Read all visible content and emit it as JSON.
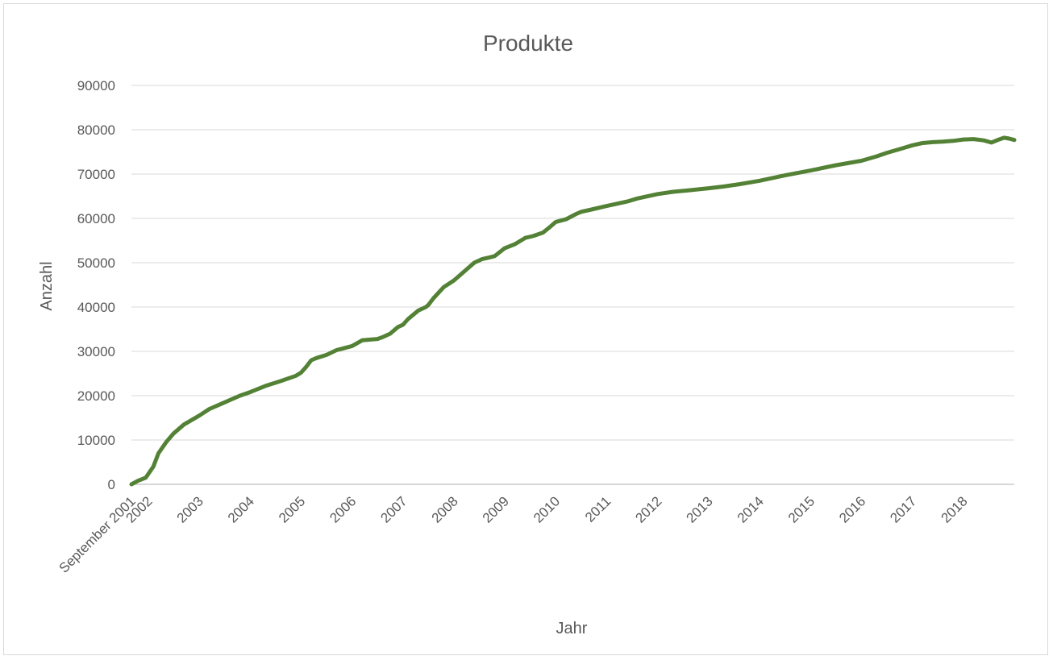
{
  "chart_data": {
    "type": "line",
    "title": "Produkte",
    "xlabel": "Jahr",
    "ylabel": "Anzahl",
    "ylim": [
      0,
      90000
    ],
    "y_ticks": [
      0,
      10000,
      20000,
      30000,
      40000,
      50000,
      60000,
      70000,
      80000,
      90000
    ],
    "grid": true,
    "legend": "none",
    "x_tick_labels": [
      {
        "label": "September 2001",
        "x": 2001.67
      },
      {
        "label": "2002",
        "x": 2002.0
      },
      {
        "label": "2003",
        "x": 2003.0
      },
      {
        "label": "2004",
        "x": 2004.0
      },
      {
        "label": "2005",
        "x": 2005.0
      },
      {
        "label": "2006",
        "x": 2006.0
      },
      {
        "label": "2007",
        "x": 2007.0
      },
      {
        "label": "2008",
        "x": 2008.0
      },
      {
        "label": "2009",
        "x": 2009.0
      },
      {
        "label": "2010",
        "x": 2010.0
      },
      {
        "label": "2011",
        "x": 2011.0
      },
      {
        "label": "2012",
        "x": 2012.0
      },
      {
        "label": "2013",
        "x": 2013.0
      },
      {
        "label": "2014",
        "x": 2014.0
      },
      {
        "label": "2015",
        "x": 2015.0
      },
      {
        "label": "2016",
        "x": 2016.0
      },
      {
        "label": "2017",
        "x": 2017.0
      },
      {
        "label": "2018",
        "x": 2018.0
      }
    ],
    "xlim": [
      2001.67,
      2019.0
    ],
    "series": [
      {
        "color": "#538135",
        "x": [
          2001.67,
          2001.8,
          2001.95,
          2002.1,
          2002.2,
          2002.35,
          2002.5,
          2002.7,
          2003.0,
          2003.2,
          2003.5,
          2003.8,
          2004.0,
          2004.3,
          2004.6,
          2004.9,
          2005.0,
          2005.1,
          2005.2,
          2005.3,
          2005.5,
          2005.7,
          2006.0,
          2006.2,
          2006.5,
          2006.6,
          2006.75,
          2006.9,
          2007.0,
          2007.1,
          2007.3,
          2007.45,
          2007.5,
          2007.6,
          2007.8,
          2008.0,
          2008.2,
          2008.4,
          2008.55,
          2008.7,
          2008.8,
          2009.0,
          2009.2,
          2009.4,
          2009.55,
          2009.75,
          2009.9,
          2010.0,
          2010.2,
          2010.4,
          2010.5,
          2010.7,
          2011.0,
          2011.2,
          2011.4,
          2011.6,
          2012.0,
          2012.3,
          2012.6,
          2013.0,
          2013.3,
          2013.6,
          2014.0,
          2014.5,
          2015.0,
          2015.5,
          2016.0,
          2016.3,
          2016.5,
          2016.8,
          2017.0,
          2017.2,
          2017.4,
          2017.6,
          2017.8,
          2018.0,
          2018.2,
          2018.4,
          2018.55,
          2018.7,
          2018.8,
          2018.9,
          2019.0
        ],
        "values": [
          0,
          800,
          1500,
          4000,
          7000,
          9500,
          11500,
          13500,
          15500,
          17000,
          18500,
          20000,
          20800,
          22200,
          23300,
          24500,
          25200,
          26500,
          28000,
          28500,
          29200,
          30300,
          31200,
          32500,
          32800,
          33200,
          34000,
          35500,
          36000,
          37300,
          39200,
          40000,
          40500,
          42000,
          44500,
          46000,
          48000,
          50000,
          50800,
          51200,
          51500,
          53300,
          54200,
          55600,
          56000,
          56800,
          58200,
          59200,
          59800,
          61000,
          61500,
          62000,
          62800,
          63300,
          63800,
          64500,
          65500,
          66000,
          66300,
          66800,
          67200,
          67700,
          68500,
          69700,
          70800,
          72000,
          73000,
          74000,
          74800,
          75800,
          76500,
          77000,
          77200,
          77300,
          77500,
          77800,
          77900,
          77600,
          77100,
          77800,
          78200,
          78000,
          77700
        ]
      }
    ]
  }
}
